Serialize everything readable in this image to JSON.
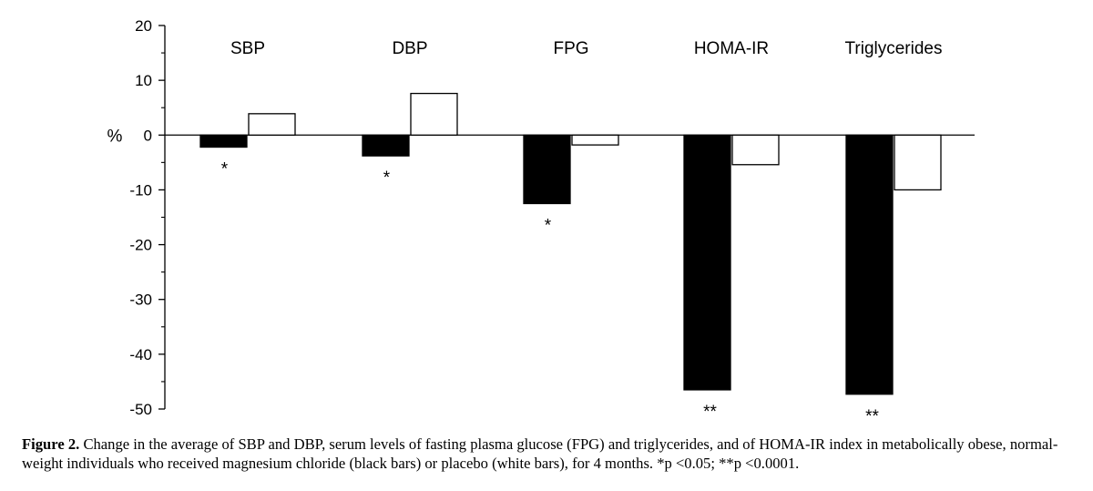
{
  "chart_data": {
    "type": "bar",
    "ylabel": "%",
    "ylim": [
      -50,
      20
    ],
    "yticks": [
      "20",
      "10",
      "0",
      "-10",
      "-20",
      "-30",
      "-40",
      "-50"
    ],
    "ytick_values": [
      20,
      10,
      0,
      -10,
      -20,
      -30,
      -40,
      -50
    ],
    "categories": [
      "SBP",
      "DBP",
      "FPG",
      "HOMA-IR",
      "Triglycerides"
    ],
    "series": [
      {
        "name": "magnesium chloride",
        "color": "#000000",
        "values": [
          -2.2,
          -3.8,
          -12.5,
          -46.5,
          -47.3
        ]
      },
      {
        "name": "placebo",
        "color": "#ffffff",
        "values": [
          3.9,
          7.6,
          -1.8,
          -5.4,
          -10.0
        ]
      }
    ],
    "significance": [
      "*",
      "*",
      "*",
      "**",
      "**"
    ],
    "grid": false,
    "legend": "none"
  },
  "caption": {
    "label": "Figure 2.",
    "text": " Change in the average of SBP and DBP, serum levels of fasting plasma glucose (FPG) and triglycerides, and of HOMA-IR index in metabolically obese, normal-weight individuals who received magnesium chloride (black bars) or placebo (white bars), for 4 months. *p <0.05; **p <0.0001."
  }
}
